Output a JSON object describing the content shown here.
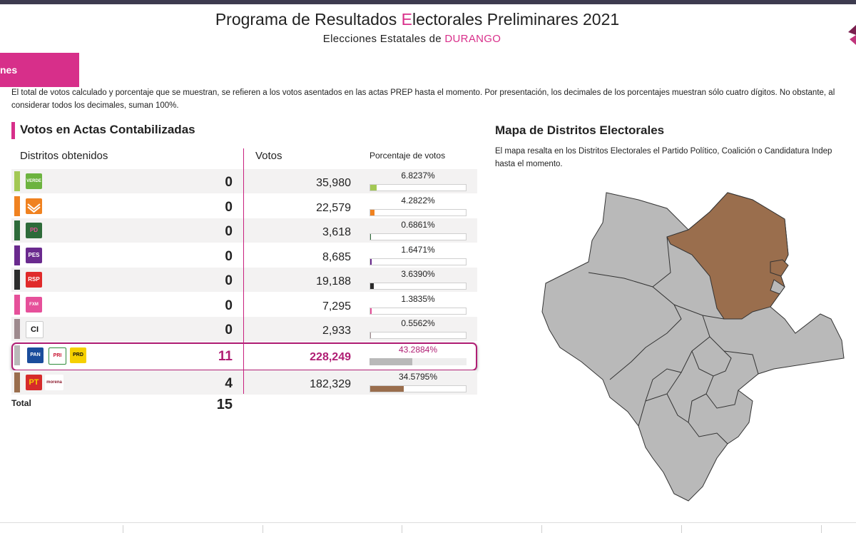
{
  "header": {
    "title_pre": "Programa de Resultados ",
    "title_e": "E",
    "title_post": "lectorales Preliminares 2021",
    "subtitle_pre": "Elecciones Estatales de ",
    "subtitle_state": "DURANGO"
  },
  "tab": {
    "label": "nes"
  },
  "note": "El total de votos calculado y porcentaje que se muestran, se refieren a los votos asentados en las actas PREP hasta el momento. Por presentación, los decimales de los porcentajes muestran sólo cuatro dígitos. No obstante, al considerar todos los decimales, suman 100%.",
  "table": {
    "section_title": "Votos en Actas Contabilizadas",
    "col_districts": "Distritos obtenidos",
    "col_votes": "Votos",
    "col_pct": "Porcentaje de votos",
    "rows": [
      {
        "party": "VERDE",
        "color": "#a3c854",
        "districts": "0",
        "votes": "35,980",
        "pct": "6.8237%",
        "pct_value": 6.8237
      },
      {
        "party": "MC",
        "color": "#f08220",
        "districts": "0",
        "votes": "22,579",
        "pct": "4.2822%",
        "pct_value": 4.2822
      },
      {
        "party": "PD",
        "color": "#2e6b3a",
        "districts": "0",
        "votes": "3,618",
        "pct": "0.6861%",
        "pct_value": 0.6861
      },
      {
        "party": "PES",
        "color": "#6a2a8e",
        "districts": "0",
        "votes": "8,685",
        "pct": "1.6471%",
        "pct_value": 1.6471
      },
      {
        "party": "RSP",
        "color": "#2b2b2b",
        "districts": "0",
        "votes": "19,188",
        "pct": "3.6390%",
        "pct_value": 3.639
      },
      {
        "party": "FXM",
        "color": "#e6509a",
        "districts": "0",
        "votes": "7,295",
        "pct": "1.3835%",
        "pct_value": 1.3835
      },
      {
        "party": "CI",
        "color": "#9e8a8e",
        "districts": "0",
        "votes": "2,933",
        "pct": "0.5562%",
        "pct_value": 0.5562
      },
      {
        "party": "PAN-PRI-PRD",
        "color": "#b9b9b9",
        "districts": "11",
        "votes": "228,249",
        "pct": "43.2884%",
        "pct_value": 43.2884
      },
      {
        "party": "PT-MORENA",
        "color": "#9a6e4d",
        "districts": "4",
        "votes": "182,329",
        "pct": "34.5795%",
        "pct_value": 34.5795
      }
    ],
    "total_label": "Total",
    "total_value": "15"
  },
  "logos": {
    "verde": "VERDE",
    "pes": "PES",
    "rsp": "RSP",
    "ci": "CI",
    "pan": "PAN",
    "pri": "PRI",
    "prd": "PRD",
    "pt": "PT",
    "morena": "morena",
    "pd": "PD",
    "fxm": "FXM"
  },
  "map": {
    "title": "Mapa de Distritos Electorales",
    "desc_line1": "El mapa resalta en los Distritos Electorales el Partido Político, Coalición o Candidatura Indep",
    "desc_line2": "hasta el momento.",
    "color_gray": "#b9b9b9",
    "color_brown": "#9a6e4d"
  }
}
